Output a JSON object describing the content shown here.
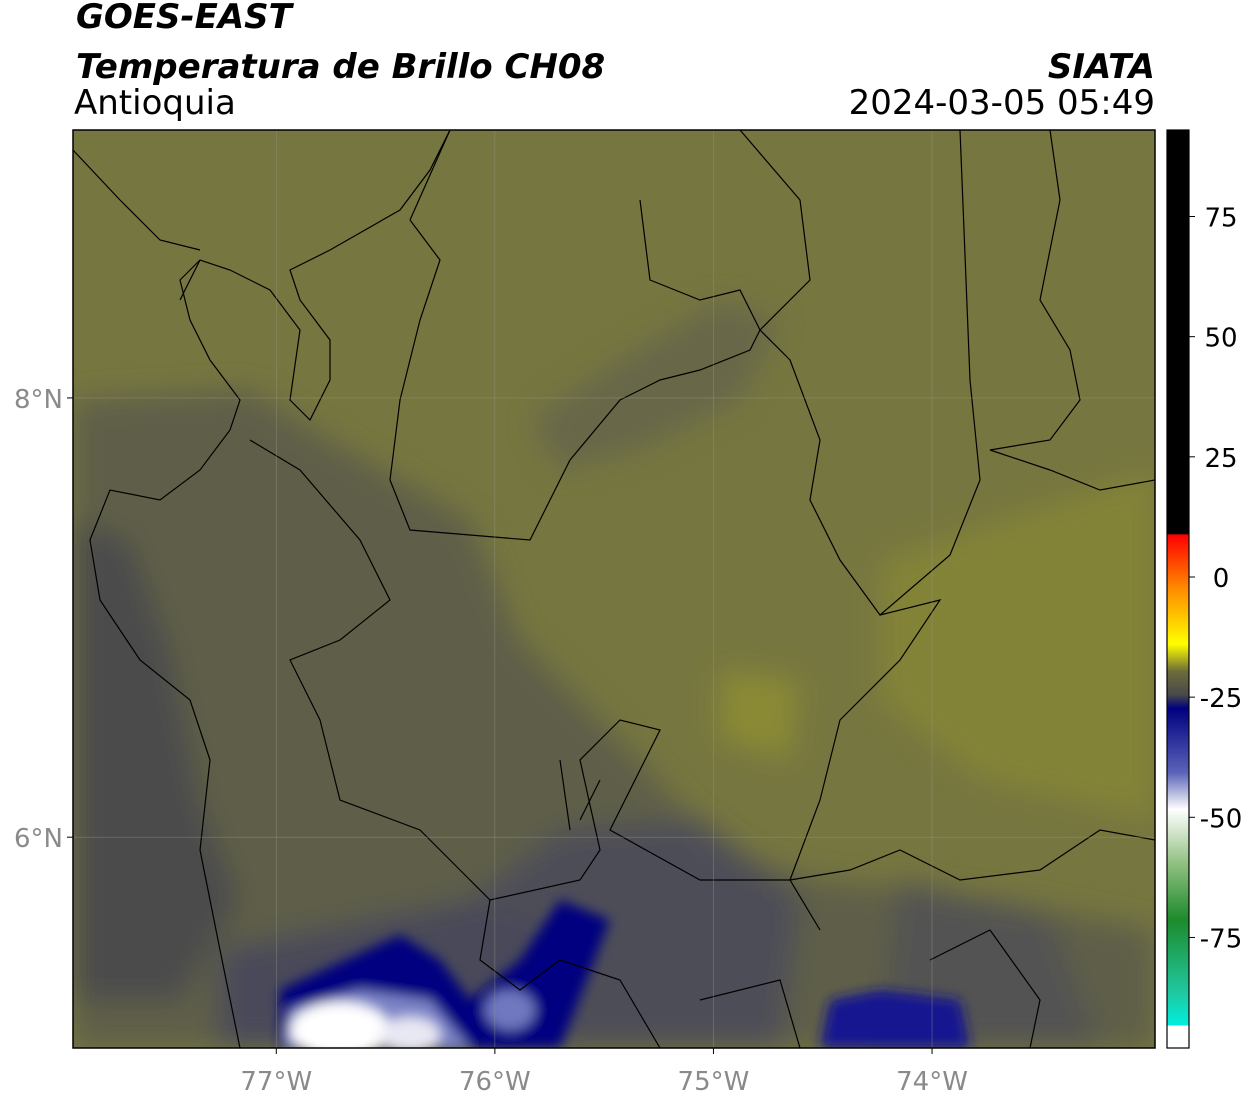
{
  "header": {
    "title": "GOES-EAST",
    "subtitle": "Temperatura de Brillo CH08",
    "region": "Antioquia",
    "source": "SIATA",
    "datetime": "2024-03-05 05:49"
  },
  "map": {
    "lonlim": [
      -77.93,
      -72.98
    ],
    "latlim": [
      5.04,
      9.22
    ],
    "lonticks": [
      {
        "value": -77,
        "label": "77°W"
      },
      {
        "value": -76,
        "label": "76°W"
      },
      {
        "value": -75,
        "label": "75°W"
      },
      {
        "value": -74,
        "label": "74°W"
      }
    ],
    "latticks": [
      {
        "value": 8,
        "label": "8°N"
      },
      {
        "value": 6,
        "label": "6°N"
      }
    ]
  },
  "colorbar": {
    "range": [
      -98,
      93
    ],
    "ticks": [
      75,
      50,
      25,
      0,
      -25,
      -50,
      -75
    ]
  }
}
